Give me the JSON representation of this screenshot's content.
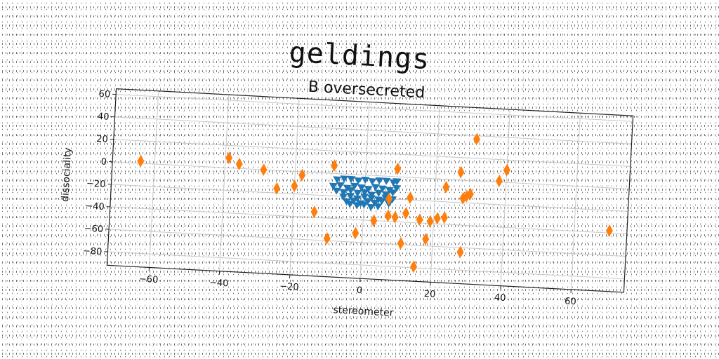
{
  "title": "geldings",
  "chart_data": {
    "type": "scatter",
    "subtitle": "B oversecreted",
    "xlabel": "stereometer",
    "ylabel": "dissociality",
    "xlim": [
      -72,
      75
    ],
    "ylim": [
      -92,
      65
    ],
    "xticks": [
      -60,
      -40,
      -20,
      0,
      20,
      40,
      60
    ],
    "yticks": [
      -80,
      -60,
      -40,
      -20,
      0,
      20,
      40,
      60
    ],
    "grid": true,
    "series": [
      {
        "marker": "triangle-down",
        "color": "#1f77b4",
        "points": [
          [
            -8,
            -5
          ],
          [
            -6,
            -4
          ],
          [
            -4,
            -4
          ],
          [
            -2,
            -5
          ],
          [
            0,
            -4
          ],
          [
            2,
            -5
          ],
          [
            4,
            -4
          ],
          [
            6,
            -4
          ],
          [
            8,
            -5
          ],
          [
            9,
            -4
          ],
          [
            -9,
            -11
          ],
          [
            -7,
            -10
          ],
          [
            -5,
            -12
          ],
          [
            -3,
            -10
          ],
          [
            -1,
            -11
          ],
          [
            1,
            -12
          ],
          [
            3,
            -10
          ],
          [
            5,
            -11
          ],
          [
            7,
            -12
          ],
          [
            9,
            -10
          ],
          [
            -8,
            -15
          ],
          [
            -6,
            -16
          ],
          [
            -4,
            -14
          ],
          [
            -2,
            -16
          ],
          [
            0,
            -15
          ],
          [
            2,
            -17
          ],
          [
            4,
            -15
          ],
          [
            6,
            -16
          ],
          [
            8,
            -14
          ],
          [
            -6,
            -20
          ],
          [
            -4,
            -19
          ],
          [
            -2,
            -21
          ],
          [
            0,
            -19
          ],
          [
            2,
            -20
          ],
          [
            4,
            -21
          ],
          [
            6,
            -19
          ],
          [
            8,
            -20
          ],
          [
            -5,
            -24
          ],
          [
            -3,
            -23
          ],
          [
            -1,
            -25
          ],
          [
            1,
            -23
          ],
          [
            3,
            -24
          ],
          [
            5,
            -22
          ],
          [
            7,
            -24
          ],
          [
            -2,
            -27
          ],
          [
            0,
            -26
          ],
          [
            2,
            -28
          ],
          [
            -4,
            -26
          ],
          [
            4,
            -27
          ]
        ]
      },
      {
        "marker": "thin-diamond",
        "color": "#ff7f0e",
        "points": [
          [
            -64,
            2
          ],
          [
            -39,
            9
          ],
          [
            -36,
            4
          ],
          [
            -29,
            0
          ],
          [
            -25,
            -16
          ],
          [
            -20,
            -13
          ],
          [
            -18,
            -3
          ],
          [
            -14,
            -35
          ],
          [
            -10,
            -58
          ],
          [
            -9,
            7
          ],
          [
            -2,
            -52
          ],
          [
            3,
            -40
          ],
          [
            7,
            -35
          ],
          [
            7,
            -20
          ],
          [
            9,
            7
          ],
          [
            9,
            -36
          ],
          [
            11,
            -59
          ],
          [
            12,
            -32
          ],
          [
            13,
            -18
          ],
          [
            15,
            -79
          ],
          [
            16,
            -37
          ],
          [
            18,
            -54
          ],
          [
            19,
            -38
          ],
          [
            21,
            -35
          ],
          [
            23,
            -34
          ],
          [
            23,
            -7
          ],
          [
            27,
            7
          ],
          [
            28,
            -16
          ],
          [
            28,
            -64
          ],
          [
            29,
            -14
          ],
          [
            30,
            -12
          ],
          [
            31,
            37
          ],
          [
            38,
            1
          ],
          [
            40,
            11
          ],
          [
            70,
            -38
          ]
        ]
      }
    ]
  }
}
